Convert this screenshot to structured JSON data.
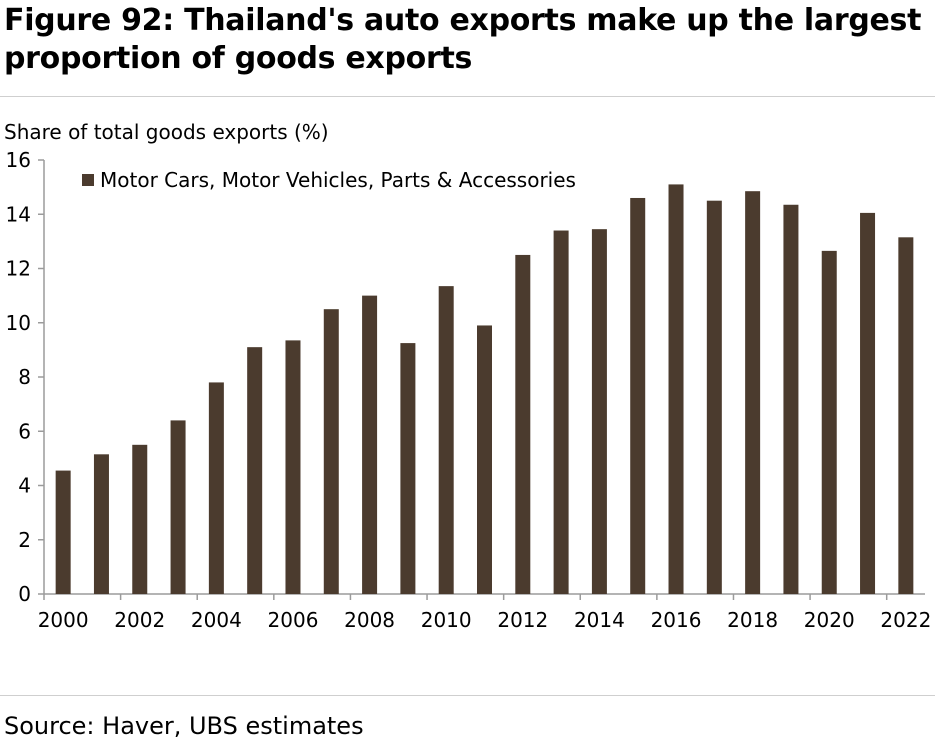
{
  "figure": {
    "title_line1": "Figure 92: Thailand's auto exports make up the largest",
    "title_line2": "proportion of goods exports",
    "source": "Source: Haver, UBS estimates"
  },
  "colors": {
    "bar": "#4b3b2e",
    "axis": "#9b9b9b",
    "rule": "#cfcfcf"
  },
  "chart_data": {
    "type": "bar",
    "ylabel": "Share of total goods exports (%)",
    "xlabel": "",
    "ylim": [
      0,
      16
    ],
    "yticks": [
      0,
      2,
      4,
      6,
      8,
      10,
      12,
      14,
      16
    ],
    "xticks": [
      "2000",
      "2002",
      "2004",
      "2006",
      "2008",
      "2010",
      "2012",
      "2014",
      "2016",
      "2018",
      "2020",
      "2022"
    ],
    "legend_position": "top-left",
    "grid": false,
    "categories": [
      "2000",
      "2001",
      "2002",
      "2003",
      "2004",
      "2005",
      "2006",
      "2007",
      "2008",
      "2009",
      "2010",
      "2011",
      "2012",
      "2013",
      "2014",
      "2015",
      "2016",
      "2017",
      "2018",
      "2019",
      "2020",
      "2021",
      "2022"
    ],
    "series": [
      {
        "name": "Motor Cars, Motor Vehicles, Parts & Accessories",
        "values": [
          4.55,
          5.15,
          5.5,
          6.4,
          7.8,
          9.1,
          9.35,
          10.5,
          11.0,
          9.25,
          11.35,
          9.9,
          12.5,
          13.4,
          13.45,
          14.6,
          15.1,
          14.5,
          14.85,
          14.35,
          12.65,
          14.05,
          13.15
        ]
      }
    ]
  }
}
